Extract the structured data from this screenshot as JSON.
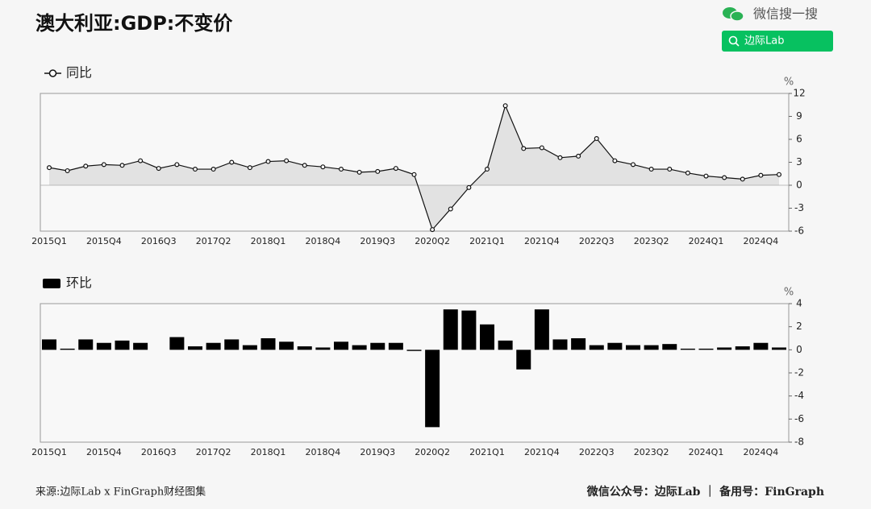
{
  "header": {
    "title": "澳大利亚:GDP:不变价",
    "search_label": "微信搜一搜",
    "search_button": "边际Lab"
  },
  "chart_data": [
    {
      "type": "line",
      "y_label": "%",
      "categories": [
        "2015Q1",
        null,
        null,
        "2015Q4",
        null,
        null,
        "2016Q3",
        null,
        null,
        "2017Q2",
        null,
        null,
        "2018Q1",
        null,
        null,
        "2018Q4",
        null,
        null,
        "2019Q3",
        null,
        null,
        "2020Q2",
        null,
        null,
        "2021Q1",
        null,
        null,
        "2021Q4",
        null,
        null,
        "2022Q3",
        null,
        null,
        "2023Q2",
        null,
        null,
        "2024Q1",
        null,
        null,
        "2024Q4",
        null
      ],
      "series": [
        {
          "name": "同比",
          "color": "#111111",
          "fill": "#e2e2e2",
          "values": [
            2.3,
            1.9,
            2.5,
            2.7,
            2.6,
            3.2,
            2.2,
            2.7,
            2.1,
            2.1,
            3.0,
            2.3,
            3.1,
            3.2,
            2.6,
            2.4,
            2.1,
            1.7,
            1.8,
            2.2,
            1.4,
            -5.8,
            -3.1,
            -0.3,
            2.1,
            10.4,
            4.8,
            4.9,
            3.6,
            3.8,
            6.1,
            3.2,
            2.7,
            2.1,
            2.1,
            1.6,
            1.2,
            1.0,
            0.8,
            1.3,
            1.4
          ]
        }
      ],
      "ylim": [
        -6,
        12
      ],
      "yticks": [
        -6,
        -3,
        0,
        3,
        6,
        9,
        12
      ],
      "grid": false
    },
    {
      "type": "bar",
      "y_label": "%",
      "categories": [
        "2015Q1",
        null,
        null,
        "2015Q4",
        null,
        null,
        "2016Q3",
        null,
        null,
        "2017Q2",
        null,
        null,
        "2018Q1",
        null,
        null,
        "2018Q4",
        null,
        null,
        "2019Q3",
        null,
        null,
        "2020Q2",
        null,
        null,
        "2021Q1",
        null,
        null,
        "2021Q4",
        null,
        null,
        "2022Q3",
        null,
        null,
        "2023Q2",
        null,
        null,
        "2024Q1",
        null,
        null,
        "2024Q4",
        null
      ],
      "series": [
        {
          "name": "环比",
          "color": "#000000",
          "values": [
            0.9,
            0.1,
            0.9,
            0.6,
            0.8,
            0.6,
            0.0,
            1.1,
            0.3,
            0.6,
            0.9,
            0.4,
            1.0,
            0.7,
            0.3,
            0.2,
            0.7,
            0.4,
            0.6,
            0.6,
            -0.1,
            -6.7,
            3.5,
            3.4,
            2.2,
            0.8,
            -1.7,
            3.5,
            0.9,
            1.0,
            0.4,
            0.6,
            0.4,
            0.4,
            0.5,
            0.1,
            0.1,
            0.2,
            0.3,
            0.6,
            0.2
          ]
        }
      ],
      "ylim": [
        -8,
        4
      ],
      "yticks": [
        -8,
        -6,
        -4,
        -2,
        0,
        2,
        4
      ],
      "grid": false
    }
  ],
  "footer": {
    "source": "来源:边际Lab x FinGraph财经图集",
    "account": "微信公众号：边际Lab ｜ 备用号：FinGraph"
  }
}
